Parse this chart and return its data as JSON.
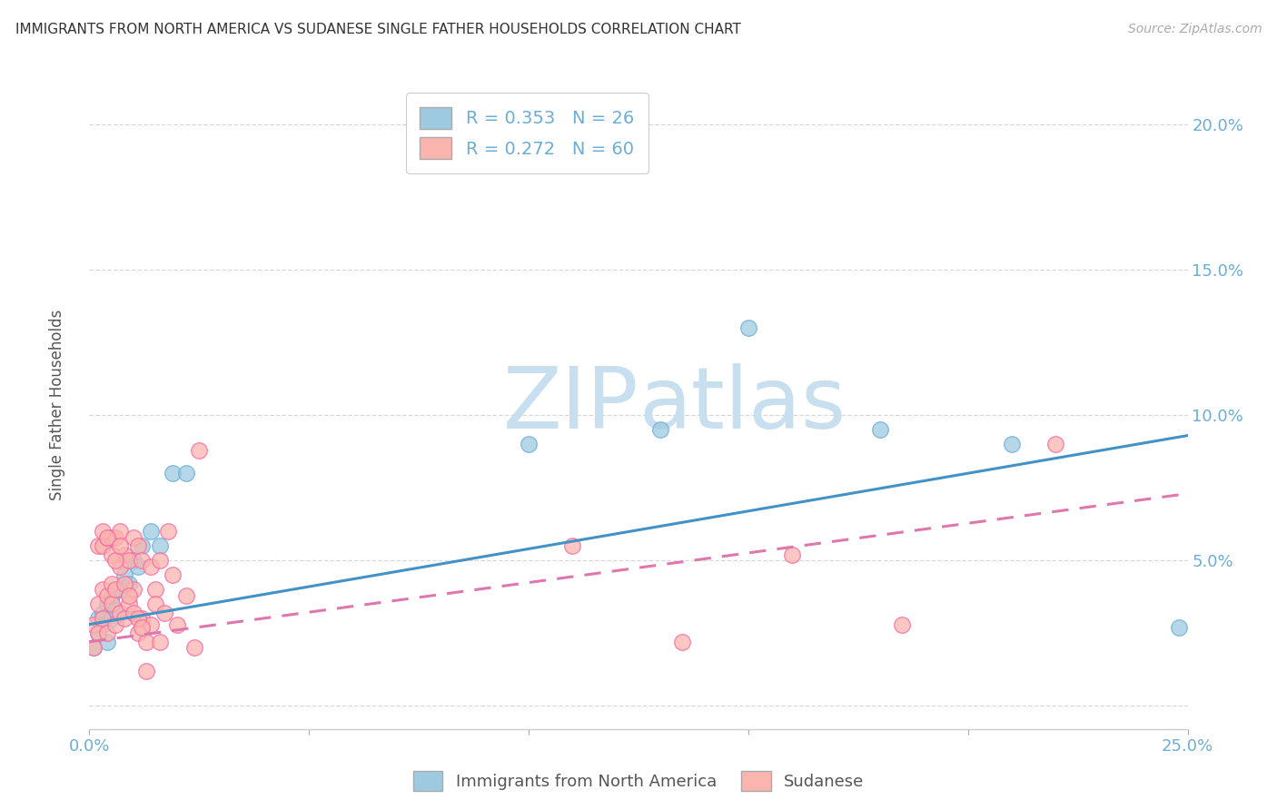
{
  "title": "IMMIGRANTS FROM NORTH AMERICA VS SUDANESE SINGLE FATHER HOUSEHOLDS CORRELATION CHART",
  "source": "Source: ZipAtlas.com",
  "ylabel": "Single Father Households",
  "xlim": [
    0.0,
    0.25
  ],
  "ylim": [
    -0.008,
    0.215
  ],
  "blue_R": 0.353,
  "blue_N": 26,
  "pink_R": 0.272,
  "pink_N": 60,
  "blue_color": "#9ecae1",
  "pink_color": "#fbb4ae",
  "blue_edge_color": "#6baed6",
  "pink_edge_color": "#f768a1",
  "blue_line_color": "#4292c6",
  "pink_line_color": "#de77ae",
  "watermark_color": "#ddeeff",
  "legend_label_blue": "Immigrants from North America",
  "legend_label_pink": "Sudanese",
  "background_color": "#ffffff",
  "grid_color": "#d0d0d0",
  "axis_color": "#6baed6",
  "blue_scatter_x": [
    0.001,
    0.002,
    0.002,
    0.003,
    0.003,
    0.004,
    0.004,
    0.005,
    0.005,
    0.006,
    0.007,
    0.008,
    0.009,
    0.01,
    0.011,
    0.012,
    0.014,
    0.016,
    0.019,
    0.022,
    0.1,
    0.13,
    0.15,
    0.18,
    0.21,
    0.248
  ],
  "blue_scatter_y": [
    0.02,
    0.025,
    0.03,
    0.032,
    0.028,
    0.035,
    0.022,
    0.03,
    0.038,
    0.033,
    0.04,
    0.045,
    0.042,
    0.05,
    0.048,
    0.055,
    0.06,
    0.055,
    0.08,
    0.08,
    0.09,
    0.095,
    0.13,
    0.095,
    0.09,
    0.027
  ],
  "pink_scatter_x": [
    0.001,
    0.001,
    0.002,
    0.002,
    0.002,
    0.003,
    0.003,
    0.003,
    0.004,
    0.004,
    0.004,
    0.005,
    0.005,
    0.005,
    0.006,
    0.006,
    0.006,
    0.007,
    0.007,
    0.007,
    0.008,
    0.008,
    0.009,
    0.009,
    0.01,
    0.01,
    0.011,
    0.011,
    0.012,
    0.012,
    0.013,
    0.013,
    0.014,
    0.014,
    0.015,
    0.015,
    0.016,
    0.016,
    0.017,
    0.018,
    0.019,
    0.02,
    0.022,
    0.024,
    0.025,
    0.11,
    0.135,
    0.16,
    0.185,
    0.22,
    0.003,
    0.004,
    0.005,
    0.006,
    0.007,
    0.008,
    0.009,
    0.01,
    0.011,
    0.012
  ],
  "pink_scatter_y": [
    0.028,
    0.02,
    0.035,
    0.025,
    0.055,
    0.03,
    0.04,
    0.055,
    0.025,
    0.038,
    0.058,
    0.035,
    0.042,
    0.058,
    0.028,
    0.04,
    0.058,
    0.032,
    0.048,
    0.06,
    0.03,
    0.052,
    0.035,
    0.05,
    0.04,
    0.058,
    0.025,
    0.055,
    0.03,
    0.05,
    0.012,
    0.022,
    0.048,
    0.028,
    0.04,
    0.035,
    0.022,
    0.05,
    0.032,
    0.06,
    0.045,
    0.028,
    0.038,
    0.02,
    0.088,
    0.055,
    0.022,
    0.052,
    0.028,
    0.09,
    0.06,
    0.058,
    0.052,
    0.05,
    0.055,
    0.042,
    0.038,
    0.032,
    0.03,
    0.027
  ],
  "blue_line_x": [
    0.0,
    0.25
  ],
  "blue_line_y": [
    0.028,
    0.093
  ],
  "pink_line_x": [
    0.0,
    0.25
  ],
  "pink_line_y": [
    0.022,
    0.073
  ]
}
